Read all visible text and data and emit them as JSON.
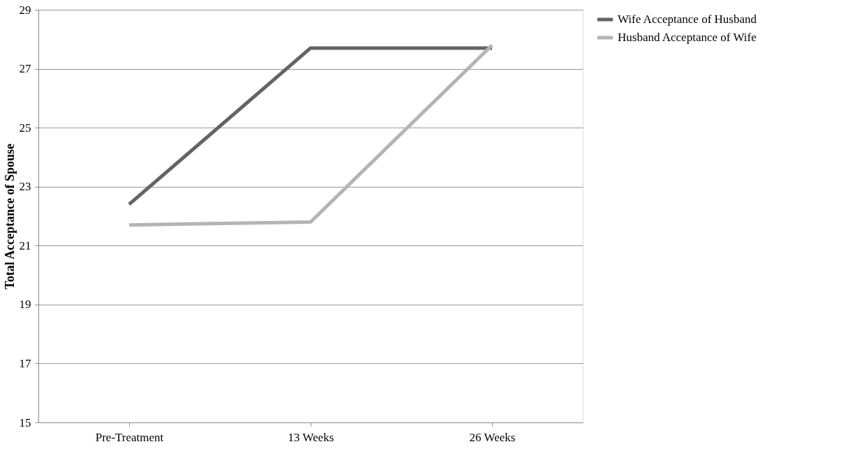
{
  "chart_data": {
    "type": "line",
    "ylabel": "Total Acceptance of Spouse",
    "categories": [
      "Pre-Treatment",
      "13 Weeks",
      "26 Weeks"
    ],
    "series": [
      {
        "name": "Wife Acceptance of Husband",
        "color": "#646464",
        "values": [
          22.4,
          27.7,
          27.7
        ]
      },
      {
        "name": "Husband Acceptance of Wife",
        "color": "#b4b4b4",
        "values": [
          21.7,
          21.8,
          27.8
        ]
      }
    ],
    "ylim": [
      15,
      29
    ],
    "yticks": [
      15,
      17,
      19,
      21,
      23,
      25,
      27,
      29
    ],
    "grid": "y",
    "legend": "right",
    "marker": "none",
    "line_style": "solid"
  }
}
